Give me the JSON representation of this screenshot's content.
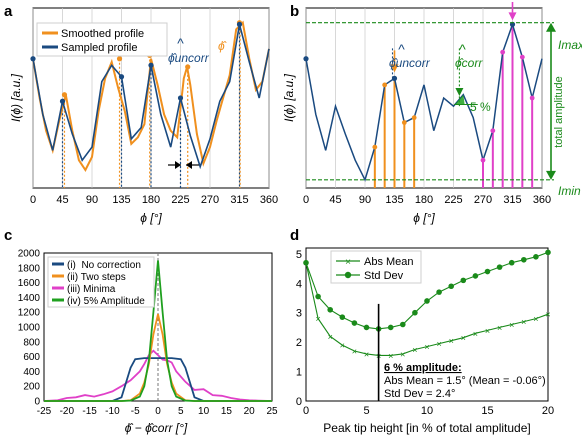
{
  "figure": {
    "panels": [
      {
        "letter": "a"
      },
      {
        "letter": "b"
      },
      {
        "letter": "c"
      },
      {
        "letter": "d"
      }
    ]
  },
  "colors": {
    "smoothed": "#f0901e",
    "sampled": "#1a4a80",
    "minima": "#e040c8",
    "amp5": "#1fa01f",
    "greenDark": "#1a8a1a",
    "frame": "#000000",
    "grid": "#c8c8c8"
  },
  "chart_data": [
    {
      "type": "line",
      "panel": "a",
      "ylabel": "I(ϕ) [a.u.]",
      "xlabel": "ϕ [°]",
      "xlim": [
        0,
        360
      ],
      "xticks": [
        0,
        45,
        90,
        135,
        180,
        225,
        270,
        315,
        360
      ],
      "ylim": [
        0,
        1
      ],
      "legend": {
        "position": "top-left",
        "entries": [
          "Smoothed profile",
          "Sampled profile"
        ]
      },
      "annotations": [
        "ϕ̂uncorr",
        "ϕ̂"
      ],
      "series": [
        {
          "name": "Sampled profile",
          "x": [
            0,
            15,
            30,
            45,
            60,
            75,
            90,
            105,
            120,
            135,
            150,
            165,
            180,
            195,
            210,
            225,
            240,
            255,
            270,
            285,
            300,
            315,
            330,
            345,
            360
          ],
          "y": [
            0.74,
            0.4,
            0.18,
            0.48,
            0.28,
            0.12,
            0.2,
            0.6,
            0.7,
            0.63,
            0.25,
            0.32,
            0.7,
            0.4,
            0.2,
            0.5,
            0.27,
            0.08,
            0.25,
            0.48,
            0.6,
            0.95,
            0.72,
            0.5,
            0.8
          ]
        },
        {
          "name": "Smoothed profile",
          "x": [
            0,
            10,
            20,
            30,
            40,
            50,
            60,
            70,
            80,
            90,
            100,
            110,
            120,
            130,
            140,
            150,
            160,
            170,
            180,
            190,
            200,
            210,
            220,
            230,
            235,
            240,
            250,
            260,
            270,
            280,
            290,
            300,
            310,
            320,
            330,
            340,
            350,
            360
          ],
          "y": [
            0.74,
            0.5,
            0.3,
            0.18,
            0.36,
            0.52,
            0.3,
            0.12,
            0.06,
            0.14,
            0.42,
            0.62,
            0.72,
            0.56,
            0.42,
            0.22,
            0.26,
            0.34,
            0.74,
            0.58,
            0.4,
            0.3,
            0.26,
            0.62,
            0.69,
            0.58,
            0.28,
            0.1,
            0.2,
            0.36,
            0.5,
            0.64,
            0.92,
            0.96,
            0.74,
            0.55,
            0.6,
            0.8
          ]
        }
      ],
      "markers": {
        "sampled_peaks": [
          [
            45,
            0.48
          ],
          [
            135,
            0.63
          ],
          [
            180,
            0.7
          ],
          [
            225,
            0.5
          ],
          [
            315,
            0.95
          ]
        ],
        "smoothed_peaks": [
          [
            48,
            0.52
          ],
          [
            132,
            0.74
          ],
          [
            178,
            0.76
          ],
          [
            236,
            0.69
          ],
          [
            315,
            0.96
          ]
        ]
      },
      "peak_drop_lines": {
        "sampled_x": [
          45,
          135,
          180,
          225,
          315
        ],
        "smoothed_x": [
          48,
          132,
          178,
          236,
          316
        ]
      }
    },
    {
      "type": "line",
      "panel": "b",
      "ylabel": "I(ϕ) [a.u.]",
      "xlabel": "ϕ [°]",
      "xlim": [
        0,
        360
      ],
      "xticks": [
        0,
        45,
        90,
        135,
        180,
        225,
        270,
        315,
        360
      ],
      "ylim": [
        0,
        1
      ],
      "annotations": [
        "ϕ̂uncorr",
        "ϕ̂corr",
        "5 %",
        "Imax",
        "Imin",
        "total amplitude"
      ],
      "imax": 0.96,
      "imin": 0.0,
      "series": [
        {
          "name": "Sampled profile",
          "x": [
            0,
            15,
            30,
            45,
            60,
            75,
            90,
            105,
            120,
            135,
            150,
            165,
            180,
            195,
            210,
            225,
            240,
            255,
            270,
            285,
            300,
            315,
            330,
            345,
            360
          ],
          "y": [
            0.74,
            0.4,
            0.18,
            0.45,
            0.28,
            0.12,
            0.0,
            0.2,
            0.58,
            0.62,
            0.35,
            0.38,
            0.58,
            0.3,
            0.5,
            0.45,
            0.52,
            0.38,
            0.12,
            0.3,
            0.78,
            0.95,
            0.75,
            0.5,
            0.74
          ]
        }
      ],
      "orange_bars": [
        [
          105,
          0.2
        ],
        [
          120,
          0.58
        ],
        [
          135,
          0.62
        ],
        [
          150,
          0.35
        ],
        [
          165,
          0.38
        ]
      ],
      "magenta_bars": [
        [
          270,
          0.12
        ],
        [
          285,
          0.3
        ],
        [
          300,
          0.78
        ],
        [
          315,
          0.95
        ],
        [
          330,
          0.75
        ],
        [
          345,
          0.5
        ]
      ]
    },
    {
      "type": "line",
      "panel": "c",
      "xlabel": "ϕ̂ − ϕ̂corr [°]",
      "xlim": [
        -25,
        25
      ],
      "xticks": [
        -25,
        -20,
        -15,
        -10,
        -5,
        0,
        5,
        10,
        15,
        20,
        25
      ],
      "ylim": [
        0,
        2000
      ],
      "yticks": [
        0,
        200,
        400,
        600,
        800,
        1000,
        1200,
        1400,
        1600,
        1800,
        2000
      ],
      "legend": {
        "position": "top-left",
        "entries": [
          "(i)  No correction",
          "(ii) Two steps",
          "(iii) Minima",
          "(iv) 5% Amplitude"
        ]
      },
      "series": [
        {
          "name": "(i)  No correction",
          "x": [
            -25,
            -12,
            -10,
            -8,
            -6,
            -5,
            -3,
            0,
            3,
            5,
            6,
            8,
            10,
            12,
            25
          ],
          "y": [
            0,
            0,
            0,
            50,
            450,
            565,
            580,
            580,
            580,
            565,
            450,
            50,
            0,
            0,
            0
          ]
        },
        {
          "name": "(ii) Two steps",
          "x": [
            -25,
            -8,
            -6,
            -4,
            -3,
            -2,
            -1,
            0,
            1,
            2,
            3,
            4,
            6,
            8,
            25
          ],
          "y": [
            0,
            0,
            10,
            100,
            250,
            500,
            900,
            1175,
            900,
            500,
            250,
            100,
            10,
            0,
            0
          ]
        },
        {
          "name": "(iii) Minima",
          "x": [
            -25,
            -22,
            -20,
            -18,
            -16,
            -14,
            -12,
            -10,
            -8,
            -6,
            -4,
            -3,
            -2,
            -1,
            0,
            1,
            2,
            3,
            4,
            6,
            8,
            10,
            12,
            14,
            16,
            18,
            20,
            22,
            25
          ],
          "y": [
            0,
            10,
            40,
            50,
            80,
            60,
            90,
            130,
            200,
            280,
            400,
            500,
            620,
            680,
            620,
            560,
            550,
            520,
            400,
            260,
            150,
            160,
            80,
            70,
            40,
            20,
            10,
            5,
            0
          ]
        },
        {
          "name": "(iv) 5% Amplitude",
          "x": [
            -25,
            -8,
            -6,
            -4,
            -3,
            -2,
            -1,
            0,
            1,
            2,
            3,
            4,
            6,
            8,
            25
          ],
          "y": [
            0,
            0,
            5,
            60,
            200,
            550,
            1200,
            1900,
            1200,
            550,
            200,
            60,
            5,
            0,
            0
          ]
        }
      ]
    },
    {
      "type": "line",
      "panel": "d",
      "xlabel": "Peak tip height [in % of total amplitude]",
      "xlim": [
        0,
        20
      ],
      "xticks": [
        0,
        5,
        10,
        15,
        20
      ],
      "ylim": [
        0,
        5
      ],
      "yticks": [
        0,
        1,
        2,
        3,
        4,
        5
      ],
      "legend": {
        "position": "top-center",
        "entries": [
          "Abs Mean",
          "Std Dev"
        ]
      },
      "annotation_title": "6 % amplitude:",
      "annotation_lines": [
        "Abs Mean = 1.5° (Mean = -0.06°)",
        "Std Dev = 2.4°"
      ],
      "annotation_x": 6,
      "series": [
        {
          "name": "Abs Mean",
          "x": [
            0,
            1,
            2,
            3,
            4,
            5,
            6,
            7,
            8,
            9,
            10,
            11,
            12,
            13,
            14,
            15,
            16,
            17,
            18,
            19,
            20
          ],
          "y": [
            4.7,
            2.8,
            2.2,
            1.9,
            1.7,
            1.6,
            1.55,
            1.55,
            1.6,
            1.75,
            1.85,
            1.95,
            2.05,
            2.15,
            2.3,
            2.4,
            2.5,
            2.6,
            2.7,
            2.8,
            2.95
          ]
        },
        {
          "name": "Std Dev",
          "x": [
            0,
            1,
            2,
            3,
            4,
            5,
            6,
            7,
            8,
            9,
            10,
            11,
            12,
            13,
            14,
            15,
            16,
            17,
            18,
            19,
            20
          ],
          "y": [
            4.7,
            3.55,
            3.1,
            2.85,
            2.65,
            2.5,
            2.45,
            2.5,
            2.6,
            3.0,
            3.4,
            3.7,
            3.9,
            4.1,
            4.25,
            4.4,
            4.55,
            4.7,
            4.8,
            4.9,
            5.05
          ]
        }
      ]
    }
  ]
}
